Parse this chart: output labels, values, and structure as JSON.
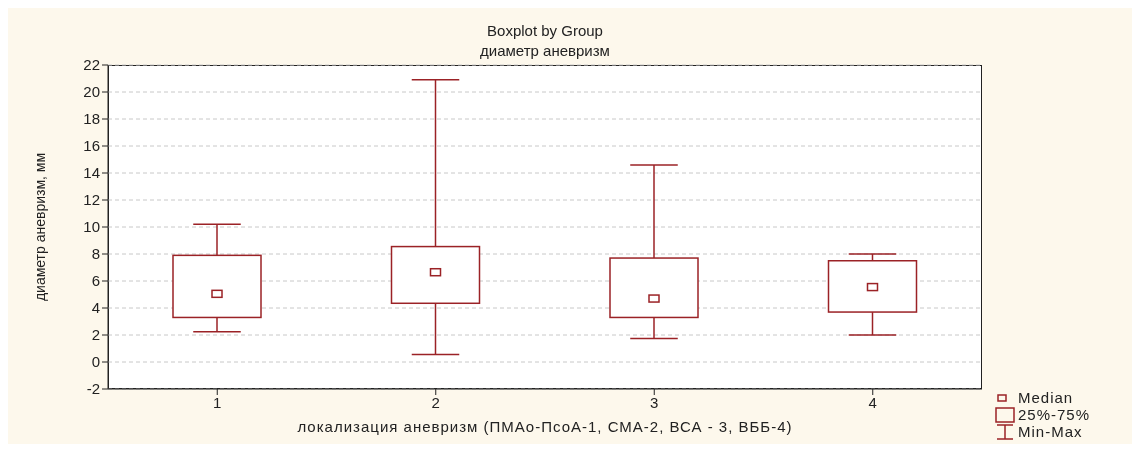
{
  "chart_data": {
    "type": "box",
    "title": "Boxplot by Group",
    "subtitle": "диаметр аневризм",
    "xlabel": "локализация аневризм (ПМАо-ПсоА-1, СМА-2, ВСА - 3, ВББ-4)",
    "ylabel": "диаметр аневризм, мм",
    "categories": [
      "1",
      "2",
      "3",
      "4"
    ],
    "color": "#9b2226",
    "ylim": [
      -2,
      22
    ],
    "yticks": [
      -2,
      0,
      2,
      4,
      6,
      8,
      10,
      12,
      14,
      16,
      18,
      20,
      22
    ],
    "grid": "y",
    "annotations": [
      "Median",
      "25%-75%",
      "Min-Max"
    ],
    "boxes": [
      {
        "low": 2.25,
        "q1": 3.3,
        "median": 5.05,
        "q3": 7.9,
        "high": 10.2
      },
      {
        "low": 0.55,
        "q1": 4.35,
        "median": 6.65,
        "q3": 8.55,
        "high": 20.9
      },
      {
        "low": 1.75,
        "q1": 3.3,
        "median": 4.7,
        "q3": 7.7,
        "high": 14.6
      },
      {
        "low": 2.0,
        "q1": 3.7,
        "median": 5.55,
        "q3": 7.5,
        "high": 8.0
      }
    ]
  }
}
